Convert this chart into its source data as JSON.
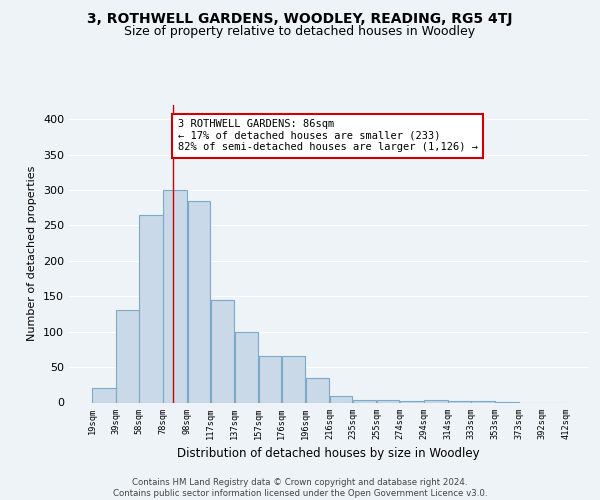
{
  "title1": "3, ROTHWELL GARDENS, WOODLEY, READING, RG5 4TJ",
  "title2": "Size of property relative to detached houses in Woodley",
  "xlabel": "Distribution of detached houses by size in Woodley",
  "ylabel": "Number of detached properties",
  "bar_left_edges": [
    19,
    39,
    58,
    78,
    98,
    117,
    137,
    157,
    176,
    196,
    216,
    235,
    255,
    274,
    294,
    314,
    333,
    353,
    373,
    392
  ],
  "bar_heights": [
    20,
    130,
    265,
    300,
    285,
    145,
    99,
    65,
    65,
    35,
    9,
    4,
    3,
    2,
    3,
    2,
    2,
    1,
    0,
    0
  ],
  "bar_widths": [
    20,
    19,
    20,
    20,
    19,
    20,
    20,
    19,
    20,
    20,
    19,
    20,
    19,
    20,
    20,
    19,
    20,
    20,
    19,
    20
  ],
  "tick_labels": [
    "19sqm",
    "39sqm",
    "58sqm",
    "78sqm",
    "98sqm",
    "117sqm",
    "137sqm",
    "157sqm",
    "176sqm",
    "196sqm",
    "216sqm",
    "235sqm",
    "255sqm",
    "274sqm",
    "294sqm",
    "314sqm",
    "333sqm",
    "353sqm",
    "373sqm",
    "392sqm",
    "412sqm"
  ],
  "tick_positions": [
    19,
    39,
    58,
    78,
    98,
    117,
    137,
    157,
    176,
    196,
    216,
    235,
    255,
    274,
    294,
    314,
    333,
    353,
    373,
    392,
    412
  ],
  "bar_color": "#c9d9e8",
  "bar_edge_color": "#7aaac8",
  "red_line_x": 86,
  "annotation_text": "3 ROTHWELL GARDENS: 86sqm\n← 17% of detached houses are smaller (233)\n82% of semi-detached houses are larger (1,126) →",
  "annotation_box_color": "#ffffff",
  "annotation_border_color": "#cc0000",
  "ylim": [
    0,
    420
  ],
  "xlim": [
    0,
    430
  ],
  "bg_color": "#eef3f7",
  "plot_bg_color": "#eef3f7",
  "footer_text": "Contains HM Land Registry data © Crown copyright and database right 2024.\nContains public sector information licensed under the Open Government Licence v3.0.",
  "grid_color": "#ffffff",
  "title1_fontsize": 10,
  "title2_fontsize": 9,
  "yticks": [
    0,
    50,
    100,
    150,
    200,
    250,
    300,
    350,
    400
  ]
}
